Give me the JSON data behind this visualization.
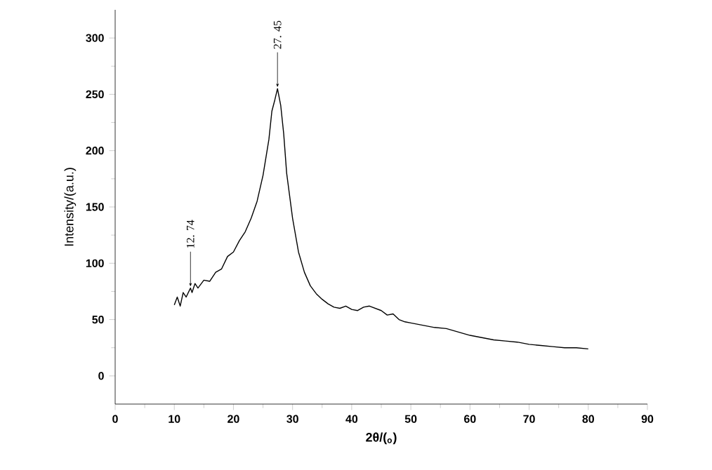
{
  "chart_data": {
    "type": "line",
    "xlabel": "2θ/($_{o}$)",
    "ylabel": "Intensity/(a.u.)",
    "xlim": [
      0,
      90
    ],
    "xticks": [
      0,
      10,
      20,
      30,
      40,
      50,
      60,
      70,
      80,
      90
    ],
    "ylim": [
      -25,
      325
    ],
    "yticks": [
      0,
      50,
      100,
      150,
      200,
      250,
      300
    ],
    "marker": "none",
    "line_style": "solid",
    "annotations": [
      {
        "text": "12. 74",
        "x": 12.74,
        "y": 78
      },
      {
        "text": "27. 45",
        "x": 27.45,
        "y": 255
      }
    ],
    "series": [
      {
        "color": "#000000",
        "x": [
          10,
          10.5,
          11,
          11.5,
          12,
          12.74,
          13,
          13.5,
          14,
          15,
          16,
          17,
          18,
          19,
          20,
          21,
          22,
          23,
          24,
          25,
          26,
          26.5,
          27,
          27.45,
          28,
          28.5,
          29,
          30,
          31,
          32,
          33,
          34,
          35,
          36,
          37,
          38,
          39,
          40,
          41,
          42,
          43,
          44,
          45,
          46,
          47,
          48,
          49,
          50,
          52,
          54,
          56,
          58,
          60,
          62,
          64,
          66,
          68,
          70,
          72,
          74,
          76,
          78,
          80
        ],
        "values": [
          63,
          70,
          62,
          74,
          70,
          78,
          74,
          82,
          78,
          85,
          84,
          92,
          95,
          106,
          110,
          120,
          128,
          140,
          155,
          178,
          210,
          235,
          245,
          255,
          240,
          215,
          180,
          140,
          110,
          92,
          80,
          73,
          68,
          64,
          61,
          60,
          62,
          59,
          58,
          61,
          62,
          60,
          58,
          54,
          55,
          50,
          48,
          47,
          45,
          43,
          42,
          39,
          36,
          34,
          32,
          31,
          30,
          28,
          27,
          26,
          25,
          25,
          24
        ]
      }
    ]
  }
}
